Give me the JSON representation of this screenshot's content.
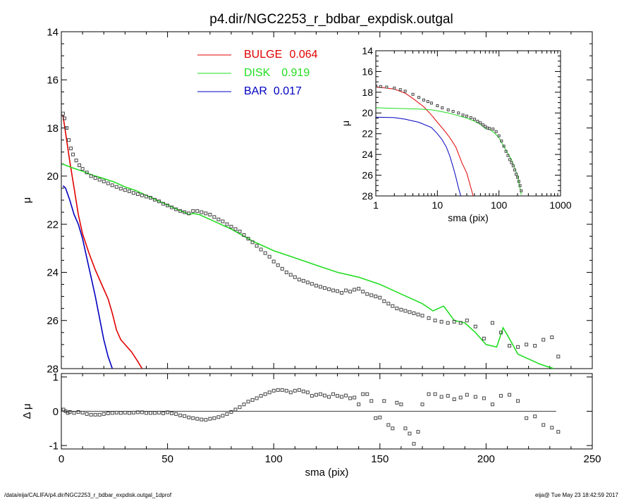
{
  "title": "p4.dir/NGC2253_r_bdbar_expdisk.outgal",
  "footer_left": "/data/eija/CALIFA/p4.dir/NGC2253_r_bdbar_expdisk.outgal_1dprof",
  "footer_right": "eija@  Tue May 23 18:42:59 2017",
  "colors": {
    "bulge": "#e00000",
    "disk": "#22dd22",
    "bar": "#0000c0",
    "data": "#000000"
  },
  "legend": [
    {
      "name": "BULGE",
      "value": "0.064",
      "color": "#e00000"
    },
    {
      "name": "DISK",
      "value": "0.919",
      "color": "#22dd22"
    },
    {
      "name": "BAR",
      "value": "0.017",
      "color": "#0000c0"
    }
  ],
  "chart_data": [
    {
      "type": "line",
      "panel": "main",
      "ylabel": "μ",
      "xlim": [
        0,
        250
      ],
      "ylim": [
        28,
        14
      ],
      "yticks": [
        14,
        16,
        18,
        20,
        22,
        24,
        26,
        28
      ],
      "xticks": [
        0,
        50,
        100,
        150,
        200,
        250
      ],
      "series": [
        {
          "name": "BULGE",
          "x": [
            0.8,
            2,
            4,
            6,
            8,
            10,
            13,
            16,
            19,
            22,
            24,
            26,
            28,
            30,
            33,
            36,
            38
          ],
          "y": [
            17.5,
            18.2,
            19.4,
            20.5,
            21.6,
            22.4,
            23.2,
            23.9,
            24.5,
            25.1,
            25.7,
            26.4,
            26.8,
            27.0,
            27.3,
            27.7,
            28.0
          ]
        },
        {
          "name": "DISK",
          "x": [
            0.5,
            5,
            10,
            15,
            20,
            25,
            30,
            35,
            40,
            45,
            50,
            55,
            58,
            60,
            62,
            65,
            70,
            80,
            90,
            100,
            110,
            120,
            130,
            140,
            150,
            155,
            160,
            170,
            175,
            180,
            185,
            190,
            195,
            200,
            205,
            208,
            210,
            215,
            220,
            225,
            230,
            232
          ],
          "y": [
            19.5,
            19.65,
            19.8,
            19.97,
            20.1,
            20.25,
            20.45,
            20.6,
            20.8,
            21.0,
            21.2,
            21.4,
            21.5,
            21.6,
            21.55,
            21.6,
            21.8,
            22.2,
            22.7,
            23.1,
            23.4,
            23.7,
            24.0,
            24.2,
            24.5,
            24.7,
            24.9,
            25.3,
            25.6,
            25.4,
            26.0,
            26.1,
            26.5,
            27.0,
            27.1,
            26.3,
            26.6,
            27.4,
            27.6,
            27.8,
            27.95,
            28.0
          ]
        },
        {
          "name": "BAR",
          "x": [
            0.8,
            2,
            4,
            6,
            8,
            10,
            12,
            14,
            16,
            18,
            20,
            22,
            24
          ],
          "y": [
            20.4,
            20.5,
            21.0,
            21.6,
            22.0,
            22.6,
            23.4,
            24.2,
            25.0,
            25.9,
            26.8,
            27.5,
            28.0
          ]
        },
        {
          "name": "data",
          "style": "squares",
          "x": [
            0.8,
            1.5,
            2.5,
            3.5,
            4.5,
            5.5,
            7,
            8.5,
            10,
            12,
            14,
            16,
            18,
            20,
            22,
            24,
            26,
            28,
            30,
            32,
            34,
            36,
            38,
            40,
            42,
            44,
            46,
            48,
            50,
            52,
            54,
            56,
            58,
            60,
            62,
            64,
            66,
            68,
            70,
            72,
            74,
            76,
            78,
            80,
            82,
            84,
            86,
            88,
            90,
            92,
            94,
            96,
            98,
            100,
            102,
            104,
            106,
            108,
            110,
            112,
            114,
            116,
            118,
            120,
            122,
            124,
            126,
            128,
            130,
            132,
            134,
            136,
            138,
            140,
            142,
            144,
            146,
            148,
            150,
            152,
            154,
            156,
            158,
            160,
            162,
            164,
            166,
            168,
            170,
            173,
            176,
            179,
            182,
            185,
            188,
            191,
            195,
            199,
            203,
            207,
            211,
            215,
            219,
            223,
            227,
            231,
            234
          ],
          "y": [
            17.4,
            17.6,
            18.0,
            18.5,
            18.85,
            19.1,
            19.35,
            19.55,
            19.7,
            19.85,
            20.0,
            20.08,
            20.15,
            20.22,
            20.3,
            20.38,
            20.45,
            20.52,
            20.58,
            20.63,
            20.7,
            20.75,
            20.8,
            20.85,
            20.9,
            20.98,
            21.05,
            21.15,
            21.22,
            21.3,
            21.38,
            21.45,
            21.5,
            21.55,
            21.45,
            21.45,
            21.5,
            21.55,
            21.6,
            21.7,
            21.8,
            21.88,
            22.0,
            22.1,
            22.2,
            22.3,
            22.45,
            22.6,
            22.75,
            22.9,
            23.05,
            23.2,
            23.35,
            23.55,
            23.7,
            23.85,
            24.0,
            24.1,
            24.2,
            24.3,
            24.35,
            24.42,
            24.48,
            24.55,
            24.6,
            24.65,
            24.7,
            24.75,
            24.78,
            24.85,
            24.75,
            24.8,
            24.72,
            24.68,
            24.8,
            24.9,
            24.95,
            25.0,
            25.05,
            25.2,
            25.3,
            25.4,
            25.5,
            25.55,
            25.6,
            25.65,
            25.7,
            25.75,
            25.8,
            25.9,
            26.0,
            26.05,
            26.1,
            26.05,
            26.1,
            26.0,
            26.25,
            26.75,
            26.1,
            26.5,
            27.05,
            27.1,
            27.0,
            27.05,
            26.8,
            26.7,
            27.5
          ]
        }
      ]
    },
    {
      "type": "line",
      "panel": "inset",
      "xlabel": "sma (pix)",
      "ylabel": "μ",
      "xscale": "log",
      "xlim": [
        1,
        1000
      ],
      "ylim": [
        28,
        14
      ],
      "yticks": [
        14,
        16,
        18,
        20,
        22,
        24,
        26,
        28
      ],
      "xticks": [
        1,
        10,
        100,
        1000
      ],
      "series": [
        {
          "name": "BULGE",
          "x": [
            1,
            1.5,
            2,
            3,
            4,
            6,
            8,
            10,
            13,
            16,
            20,
            25,
            30,
            35,
            38
          ],
          "y": [
            17.5,
            17.6,
            17.7,
            18.1,
            18.6,
            19.4,
            20.2,
            20.9,
            21.7,
            22.4,
            23.3,
            24.8,
            25.8,
            27.2,
            28.0
          ]
        },
        {
          "name": "DISK",
          "x": [
            1,
            2,
            3,
            5,
            8,
            10,
            15,
            20,
            30,
            40,
            50,
            60,
            70,
            80,
            100,
            130,
            160,
            200,
            230
          ],
          "y": [
            19.5,
            19.55,
            19.58,
            19.62,
            19.7,
            19.8,
            20.0,
            20.2,
            20.5,
            20.8,
            21.1,
            21.5,
            21.6,
            21.8,
            22.4,
            23.6,
            24.5,
            26.0,
            27.9
          ]
        },
        {
          "name": "BAR",
          "x": [
            1,
            2,
            3,
            5,
            8,
            10,
            12,
            14,
            16,
            18,
            20,
            22,
            24
          ],
          "y": [
            20.4,
            20.45,
            20.6,
            20.9,
            21.4,
            22.0,
            22.6,
            23.3,
            24.2,
            25.2,
            26.2,
            27.2,
            28.0
          ]
        },
        {
          "name": "data",
          "style": "squares",
          "x": [
            1,
            1.2,
            1.5,
            2,
            2.5,
            3,
            4,
            5,
            6,
            7,
            8,
            10,
            12,
            15,
            18,
            22,
            26,
            30,
            35,
            40,
            45,
            50,
            55,
            60,
            65,
            70,
            80,
            90,
            100,
            110,
            120,
            130,
            140,
            150,
            160,
            170,
            180,
            190,
            200,
            210,
            220,
            230
          ],
          "y": [
            17.4,
            17.45,
            17.5,
            17.6,
            17.75,
            17.9,
            18.2,
            18.5,
            18.75,
            18.9,
            19.05,
            19.3,
            19.5,
            19.7,
            19.85,
            20.0,
            20.2,
            20.3,
            20.45,
            20.6,
            20.8,
            20.95,
            21.15,
            21.3,
            21.45,
            21.5,
            21.55,
            21.8,
            22.2,
            22.7,
            23.2,
            23.7,
            24.1,
            24.5,
            24.8,
            25.1,
            25.5,
            25.9,
            26.2,
            26.6,
            27.0,
            27.5
          ]
        }
      ]
    },
    {
      "type": "scatter",
      "panel": "residual",
      "xlabel": "sma (pix)",
      "ylabel": "Δ μ",
      "xlim": [
        0,
        250
      ],
      "ylim": [
        -1.1,
        1.1
      ],
      "yticks": [
        -1,
        0,
        1
      ],
      "xticks": [
        0,
        50,
        100,
        150,
        200,
        250
      ],
      "series": [
        {
          "name": "data",
          "style": "squares",
          "x": [
            1,
            2,
            3,
            4,
            6,
            8,
            10,
            12,
            14,
            16,
            18,
            20,
            22,
            24,
            26,
            28,
            30,
            32,
            34,
            36,
            38,
            40,
            42,
            44,
            46,
            48,
            50,
            52,
            54,
            56,
            58,
            60,
            62,
            64,
            66,
            68,
            70,
            72,
            74,
            76,
            78,
            80,
            82,
            84,
            86,
            88,
            90,
            92,
            94,
            96,
            98,
            100,
            102,
            104,
            106,
            108,
            110,
            112,
            114,
            116,
            118,
            120,
            122,
            124,
            126,
            128,
            130,
            132,
            134,
            136,
            138,
            140,
            142,
            144,
            146,
            148,
            150,
            152,
            154,
            156,
            158,
            160,
            162,
            164,
            166,
            168,
            170,
            173,
            176,
            179,
            182,
            185,
            188,
            191,
            195,
            199,
            203,
            207,
            211,
            215,
            219,
            223,
            227,
            231,
            234
          ],
          "y": [
            0.05,
            0.0,
            -0.05,
            -0.02,
            -0.05,
            -0.02,
            -0.04,
            -0.08,
            -0.1,
            -0.1,
            -0.1,
            -0.08,
            -0.06,
            -0.05,
            -0.04,
            -0.05,
            -0.04,
            -0.05,
            -0.04,
            -0.03,
            -0.03,
            -0.05,
            -0.05,
            -0.05,
            -0.04,
            -0.06,
            -0.03,
            -0.06,
            -0.08,
            -0.12,
            -0.14,
            -0.18,
            -0.2,
            -0.22,
            -0.24,
            -0.25,
            -0.22,
            -0.2,
            -0.17,
            -0.13,
            -0.08,
            -0.02,
            0.05,
            0.12,
            0.2,
            0.28,
            0.33,
            0.38,
            0.45,
            0.5,
            0.55,
            0.6,
            0.62,
            0.62,
            0.6,
            0.55,
            0.6,
            0.62,
            0.58,
            0.55,
            0.45,
            0.48,
            0.5,
            0.46,
            0.42,
            0.5,
            0.45,
            0.42,
            0.46,
            0.38,
            0.4,
            0.2,
            0.5,
            0.5,
            0.3,
            -0.2,
            -0.18,
            0.3,
            -0.4,
            -0.5,
            0.25,
            0.2,
            -0.5,
            -0.65,
            -0.95,
            -0.6,
            0.2,
            0.5,
            0.5,
            0.42,
            0.45,
            0.35,
            0.4,
            0.48,
            0.42,
            0.38,
            0.2,
            0.45,
            0.48,
            0.3,
            -0.2,
            -0.15,
            -0.4,
            -0.48,
            -0.6
          ]
        }
      ]
    }
  ]
}
